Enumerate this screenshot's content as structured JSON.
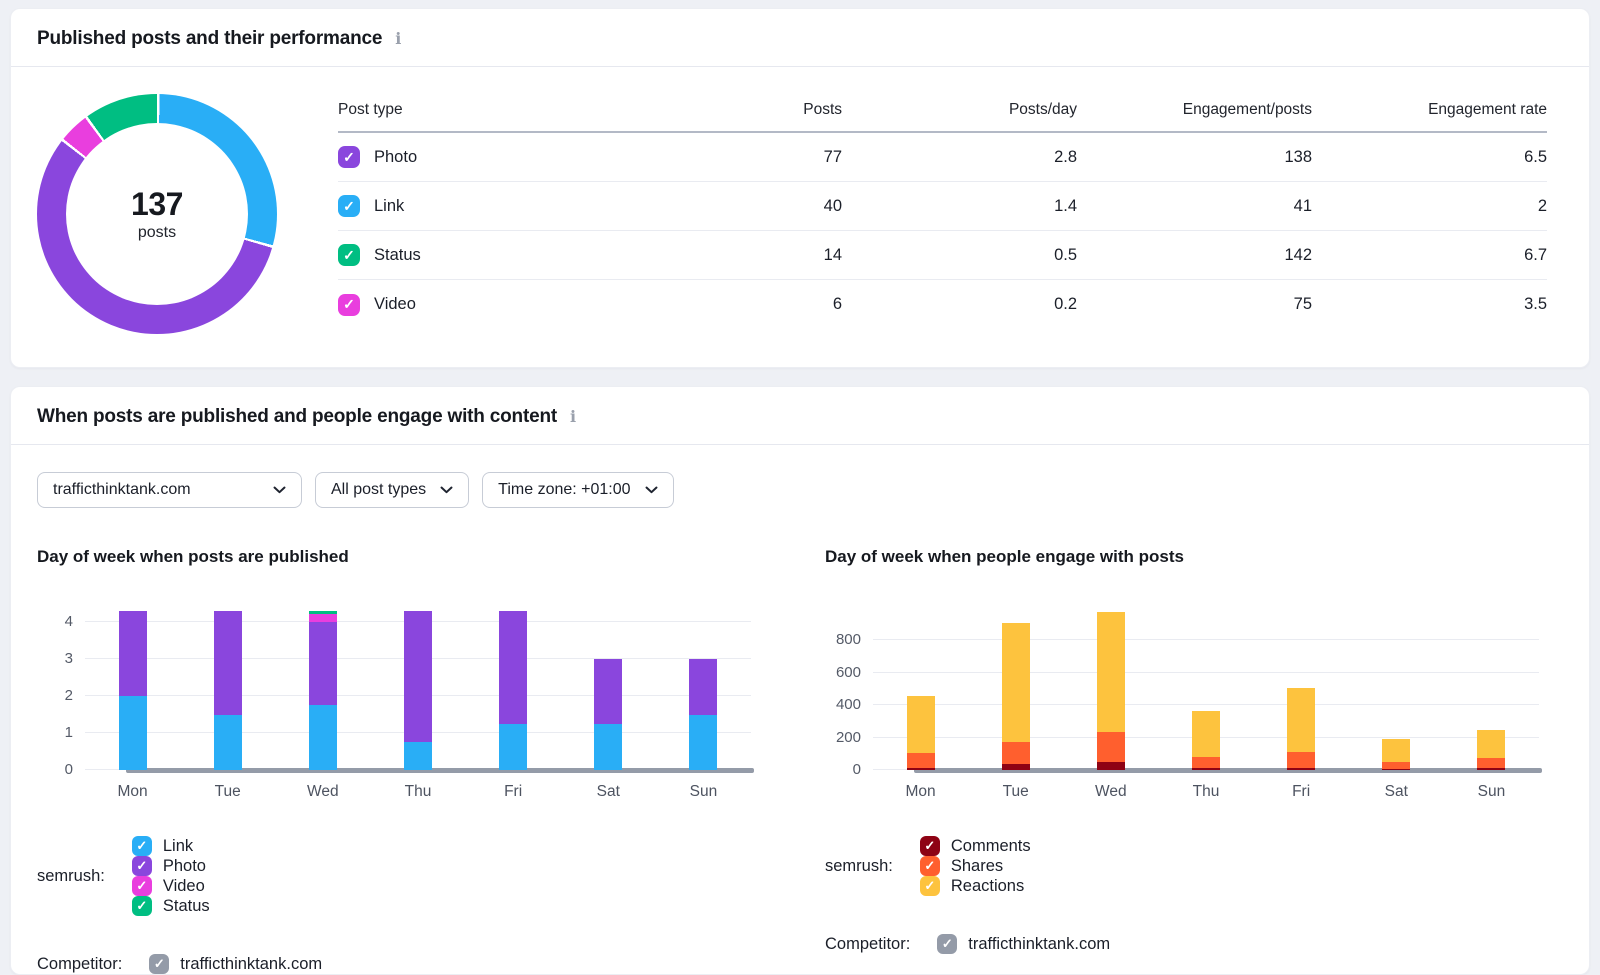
{
  "icons": {
    "info": "i",
    "check": "✓"
  },
  "colors": {
    "link_blue": "#29AEF6",
    "photo_purple": "#8A46DD",
    "video_magenta": "#E93EDE",
    "status_green": "#00BE82",
    "comments_dark_red": "#8E0214",
    "shares_orange": "#FF5F2E",
    "reactions_amber": "#FDC33E",
    "competitor_gray": "#949BA8"
  },
  "card_published": {
    "title": "Published posts and their performance",
    "donut": {
      "center_value": "137",
      "center_label": "posts",
      "segments": [
        {
          "name": "Link",
          "value": 40,
          "color": "#29AEF6"
        },
        {
          "name": "Photo",
          "value": 77,
          "color": "#8A46DD"
        },
        {
          "name": "Video",
          "value": 6,
          "color": "#E93EDE"
        },
        {
          "name": "Status",
          "value": 14,
          "color": "#00BE82"
        }
      ]
    },
    "table": {
      "headers": [
        "Post type",
        "Posts",
        "Posts/day",
        "Engagement/posts",
        "Engagement rate"
      ],
      "rows": [
        {
          "type": "Photo",
          "color": "#8A46DD",
          "checked": true,
          "values": [
            "77",
            "2.8",
            "138",
            "6.5"
          ]
        },
        {
          "type": "Link",
          "color": "#29AEF6",
          "checked": true,
          "values": [
            "40",
            "1.4",
            "41",
            "2"
          ]
        },
        {
          "type": "Status",
          "color": "#00BE82",
          "checked": true,
          "values": [
            "14",
            "0.5",
            "142",
            "6.7"
          ]
        },
        {
          "type": "Video",
          "color": "#E93EDE",
          "checked": true,
          "values": [
            "6",
            "0.2",
            "75",
            "3.5"
          ]
        }
      ]
    }
  },
  "card_when": {
    "title": "When posts are published and people engage with content",
    "filters": [
      {
        "label": "trafficthinktank.com"
      },
      {
        "label": "All post types"
      },
      {
        "label": "Time zone: +01:00"
      }
    ],
    "left_legend": {
      "owner_label": "semrush:",
      "items": [
        {
          "label": "Link",
          "color": "#29AEF6",
          "checked": true
        },
        {
          "label": "Photo",
          "color": "#8A46DD",
          "checked": true
        },
        {
          "label": "Video",
          "color": "#E93EDE",
          "checked": true
        },
        {
          "label": "Status",
          "color": "#00BE82",
          "checked": true
        }
      ],
      "competitor_label": "Competitor:",
      "competitor_item": {
        "label": "trafficthinktank.com",
        "color": "#949BA8",
        "checked": true
      }
    },
    "right_legend": {
      "owner_label": "semrush:",
      "items": [
        {
          "label": "Comments",
          "color": "#8E0214",
          "checked": true
        },
        {
          "label": "Shares",
          "color": "#FF5F2E",
          "checked": true
        },
        {
          "label": "Reactions",
          "color": "#FDC33E",
          "checked": true
        }
      ],
      "competitor_label": "Competitor:",
      "competitor_item": {
        "label": "trafficthinktank.com",
        "color": "#949BA8",
        "checked": true
      }
    }
  },
  "chart_data": [
    {
      "type": "bar",
      "stacked": true,
      "title": "Day of week when posts are published",
      "categories": [
        "Mon",
        "Tue",
        "Wed",
        "Thu",
        "Fri",
        "Sat",
        "Sun"
      ],
      "series": [
        {
          "name": "Link",
          "color": "#29AEF6",
          "values": [
            2,
            1.5,
            1.75,
            0.75,
            1.25,
            1.25,
            1.5
          ]
        },
        {
          "name": "Photo",
          "color": "#8A46DD",
          "values": [
            2.3,
            2.8,
            2.25,
            3.55,
            3.05,
            1.75,
            1.5
          ]
        },
        {
          "name": "Video",
          "color": "#E93EDE",
          "values": [
            0,
            0,
            0.22,
            0,
            0,
            0,
            0
          ]
        },
        {
          "name": "Status",
          "color": "#00BE82",
          "values": [
            0,
            0,
            0.08,
            0,
            0,
            0,
            0
          ]
        }
      ],
      "xlabel": "",
      "ylabel": "",
      "ylim": [
        0,
        4.6
      ],
      "yticks": [
        0,
        1,
        2,
        3,
        4
      ],
      "grid": true,
      "legend_position": "bottom",
      "competitor": {
        "name": "trafficthinktank.com",
        "color": "#949BA8"
      }
    },
    {
      "type": "bar",
      "stacked": true,
      "title": "Day of week when people engage with posts",
      "categories": [
        "Mon",
        "Tue",
        "Wed",
        "Thu",
        "Fri",
        "Sat",
        "Sun"
      ],
      "series": [
        {
          "name": "Comments",
          "color": "#8E0214",
          "values": [
            15,
            35,
            50,
            10,
            15,
            5,
            15
          ]
        },
        {
          "name": "Shares",
          "color": "#FF5F2E",
          "values": [
            90,
            140,
            185,
            70,
            95,
            45,
            60
          ]
        },
        {
          "name": "Reactions",
          "color": "#FDC33E",
          "values": [
            355,
            735,
            740,
            285,
            395,
            140,
            170
          ]
        }
      ],
      "xlabel": "",
      "ylabel": "",
      "ylim": [
        0,
        1050
      ],
      "yticks": [
        0,
        200,
        400,
        600,
        800
      ],
      "grid": true,
      "legend_position": "bottom",
      "competitor": {
        "name": "trafficthinktank.com",
        "color": "#949BA8"
      }
    }
  ]
}
